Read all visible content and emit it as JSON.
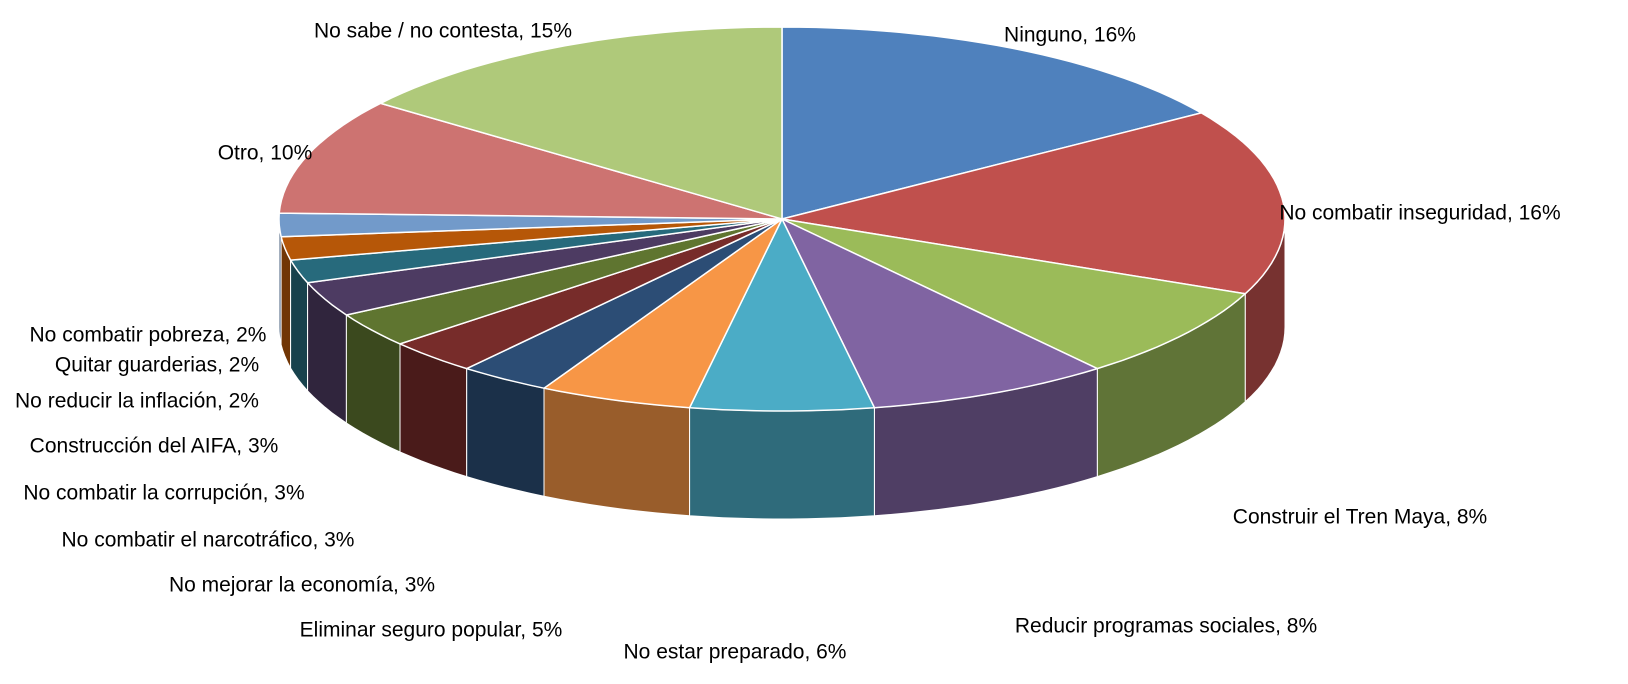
{
  "chart_data": {
    "type": "pie",
    "title": "",
    "series": [
      {
        "name": "Ninguno",
        "value": 16,
        "label": "Ninguno, 16%",
        "color": "#4F81BD"
      },
      {
        "name": "No combatir inseguridad",
        "value": 16,
        "label": "No combatir inseguridad, 16%",
        "color": "#C0504D"
      },
      {
        "name": "Construir el Tren Maya",
        "value": 8,
        "label": "Construir el Tren Maya, 8%",
        "color": "#9BBB59"
      },
      {
        "name": "Reducir programas sociales",
        "value": 8,
        "label": "Reducir programas sociales, 8%",
        "color": "#8064A2"
      },
      {
        "name": "No estar preparado",
        "value": 6,
        "label": "No estar preparado, 6%",
        "color": "#4BACC6"
      },
      {
        "name": "Eliminar seguro popular",
        "value": 5,
        "label": "Eliminar seguro popular, 5%",
        "color": "#F79646"
      },
      {
        "name": "No mejorar la economía",
        "value": 3,
        "label": "No mejorar la economía, 3%",
        "color": "#2C4D75"
      },
      {
        "name": "No combatir el narcotráfico",
        "value": 3,
        "label": "No combatir el narcotráfico, 3%",
        "color": "#772C2A"
      },
      {
        "name": "No combatir la corrupción",
        "value": 3,
        "label": "No combatir la corrupción, 3%",
        "color": "#5F7530"
      },
      {
        "name": "Construcción del AIFA",
        "value": 3,
        "label": "Construcción del AIFA, 3%",
        "color": "#4D3B62"
      },
      {
        "name": "No reducir la inflación",
        "value": 2,
        "label": "No reducir la inflación, 2%",
        "color": "#276A7C"
      },
      {
        "name": "Quitar guarderias",
        "value": 2,
        "label": "Quitar guarderias, 2%",
        "color": "#B65708"
      },
      {
        "name": "No combatir pobreza",
        "value": 2,
        "label": "No combatir pobreza, 2%",
        "color": "#729ACA"
      },
      {
        "name": "Otro",
        "value": 10,
        "label": "Otro, 10%",
        "color": "#CD7371"
      },
      {
        "name": "No sabe / no contesta",
        "value": 15,
        "label": "No sabe / no contesta, 15%",
        "color": "#AFC97A"
      }
    ]
  }
}
